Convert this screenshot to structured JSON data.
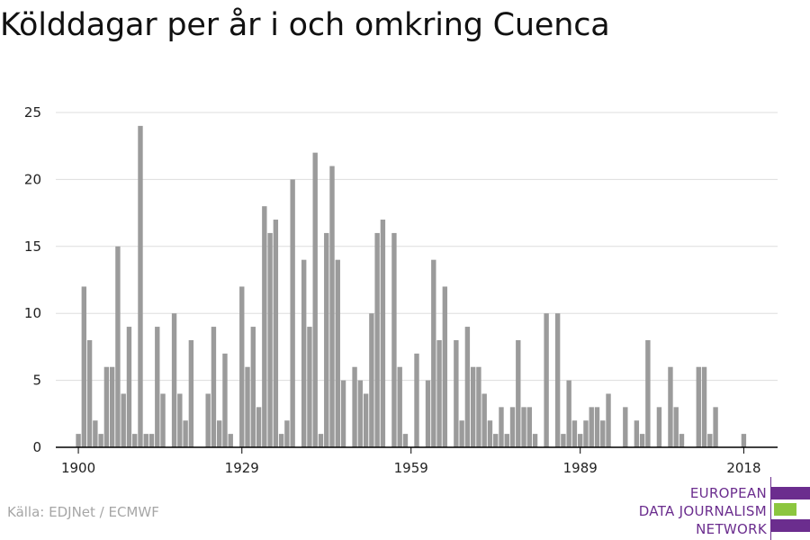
{
  "title": "Kölddagar per år i och omkring Cuenca",
  "source": "Källa: EDJNet / ECMWF",
  "logo": {
    "line1": "EUROPEAN",
    "line2": "DATA JOURNALISM",
    "line3": "NETWORK",
    "colors": {
      "purple": "#6b2d8e",
      "green": "#8cc63f"
    }
  },
  "colors": {
    "bar": "#9b9b9b",
    "grid": "#dddddd",
    "axis": "#000000"
  },
  "chart_data": {
    "type": "bar",
    "title": "Kölddagar per år i och omkring Cuenca",
    "xlabel": "",
    "ylabel": "",
    "x_ticks": [
      1900,
      1929,
      1959,
      1989,
      2018
    ],
    "y_ticks": [
      0,
      5,
      10,
      15,
      20,
      25
    ],
    "ylim": [
      0,
      25
    ],
    "xlim": [
      1896,
      2024
    ],
    "grid": true,
    "x": [
      1900,
      1901,
      1902,
      1903,
      1904,
      1905,
      1906,
      1907,
      1908,
      1909,
      1910,
      1911,
      1912,
      1913,
      1914,
      1915,
      1916,
      1917,
      1918,
      1919,
      1920,
      1921,
      1922,
      1923,
      1924,
      1925,
      1926,
      1927,
      1928,
      1929,
      1930,
      1931,
      1932,
      1933,
      1934,
      1935,
      1936,
      1937,
      1938,
      1939,
      1940,
      1941,
      1942,
      1943,
      1944,
      1945,
      1946,
      1947,
      1948,
      1949,
      1950,
      1951,
      1952,
      1953,
      1954,
      1955,
      1956,
      1957,
      1958,
      1959,
      1960,
      1961,
      1962,
      1963,
      1964,
      1965,
      1966,
      1967,
      1968,
      1969,
      1970,
      1971,
      1972,
      1973,
      1974,
      1975,
      1976,
      1977,
      1978,
      1979,
      1980,
      1981,
      1982,
      1983,
      1984,
      1985,
      1986,
      1987,
      1988,
      1989,
      1990,
      1991,
      1992,
      1993,
      1994,
      1995,
      1996,
      1997,
      1998,
      1999,
      2000,
      2001,
      2002,
      2003,
      2004,
      2005,
      2006,
      2007,
      2008,
      2009,
      2010,
      2011,
      2012,
      2013,
      2014,
      2015,
      2016,
      2017,
      2018,
      2019,
      2020
    ],
    "values": [
      1,
      12,
      8,
      2,
      1,
      6,
      6,
      15,
      4,
      9,
      1,
      24,
      1,
      1,
      9,
      4,
      0,
      10,
      4,
      2,
      8,
      0,
      0,
      4,
      9,
      2,
      7,
      1,
      0,
      12,
      6,
      9,
      3,
      18,
      16,
      17,
      1,
      2,
      20,
      0,
      14,
      9,
      22,
      1,
      16,
      21,
      14,
      5,
      0,
      6,
      5,
      4,
      10,
      16,
      17,
      0,
      16,
      6,
      1,
      0,
      7,
      0,
      5,
      14,
      8,
      12,
      0,
      8,
      2,
      9,
      6,
      6,
      4,
      2,
      1,
      3,
      1,
      3,
      8,
      3,
      3,
      1,
      0,
      10,
      0,
      10,
      1,
      5,
      2,
      1,
      2,
      3,
      3,
      2,
      4,
      0,
      0,
      3,
      0,
      2,
      1,
      8,
      0,
      3,
      0,
      6,
      3,
      1,
      0,
      0,
      6,
      6,
      1,
      3,
      0,
      0,
      0,
      0,
      1,
      0,
      0
    ]
  }
}
